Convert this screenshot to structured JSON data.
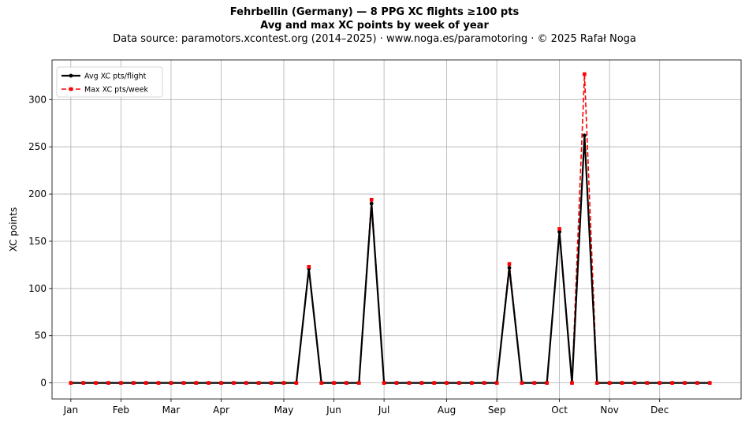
{
  "header": {
    "title_line1": "Fehrbellin (Germany)  —  8 PPG XC flights ≥100 pts",
    "title_line2": "Avg and max XC points by week of year",
    "subtitle": "Data source: paramotors.xcontest.org (2014–2025)  ·  www.noga.es/paramotoring  ·  © 2025 Rafał Noga"
  },
  "chart_data": {
    "type": "line",
    "title": "Fehrbellin (Germany)  —  8 PPG XC flights ≥100 pts",
    "subtitle": "Avg and max XC points by week of year",
    "xlabel": "",
    "ylabel": "XC points",
    "xlim": [
      -1.5,
      53.5
    ],
    "ylim": [
      -17,
      342
    ],
    "yticks": [
      0,
      50,
      100,
      150,
      200,
      250,
      300
    ],
    "month_ticks": [
      {
        "label": "Jan",
        "week": 0
      },
      {
        "label": "Feb",
        "week": 4
      },
      {
        "label": "Mar",
        "week": 8
      },
      {
        "label": "Apr",
        "week": 12
      },
      {
        "label": "May",
        "week": 17
      },
      {
        "label": "Jun",
        "week": 21
      },
      {
        "label": "Jul",
        "week": 25
      },
      {
        "label": "Aug",
        "week": 30
      },
      {
        "label": "Sep",
        "week": 34
      },
      {
        "label": "Oct",
        "week": 39
      },
      {
        "label": "Nov",
        "week": 43
      },
      {
        "label": "Dec",
        "week": 47
      }
    ],
    "x": [
      0,
      1,
      2,
      3,
      4,
      5,
      6,
      7,
      8,
      9,
      10,
      11,
      12,
      13,
      14,
      15,
      16,
      17,
      18,
      19,
      20,
      21,
      22,
      23,
      24,
      25,
      26,
      27,
      28,
      29,
      30,
      31,
      32,
      33,
      34,
      35,
      36,
      37,
      38,
      39,
      40,
      41,
      42,
      43,
      44,
      45,
      46,
      47,
      48,
      49,
      50,
      51
    ],
    "grid": true,
    "legend_position": "upper-left",
    "series": [
      {
        "name": "Avg XC pts/flight",
        "color": "#000000",
        "style": "solid",
        "marker": "circle",
        "values": [
          0,
          0,
          0,
          0,
          0,
          0,
          0,
          0,
          0,
          0,
          0,
          0,
          0,
          0,
          0,
          0,
          0,
          0,
          0,
          121,
          0,
          0,
          0,
          0,
          190,
          0,
          0,
          0,
          0,
          0,
          0,
          0,
          0,
          0,
          0,
          122,
          0,
          0,
          0,
          160,
          0,
          262,
          0,
          0,
          0,
          0,
          0,
          0,
          0,
          0,
          0,
          0
        ]
      },
      {
        "name": "Max XC pts/week",
        "color": "#ff0000",
        "style": "dashed",
        "marker": "square",
        "values": [
          0,
          0,
          0,
          0,
          0,
          0,
          0,
          0,
          0,
          0,
          0,
          0,
          0,
          0,
          0,
          0,
          0,
          0,
          0,
          123,
          0,
          0,
          0,
          0,
          194,
          0,
          0,
          0,
          0,
          0,
          0,
          0,
          0,
          0,
          0,
          126,
          0,
          0,
          0,
          163,
          0,
          327,
          0,
          0,
          0,
          0,
          0,
          0,
          0,
          0,
          0,
          0
        ]
      }
    ]
  }
}
